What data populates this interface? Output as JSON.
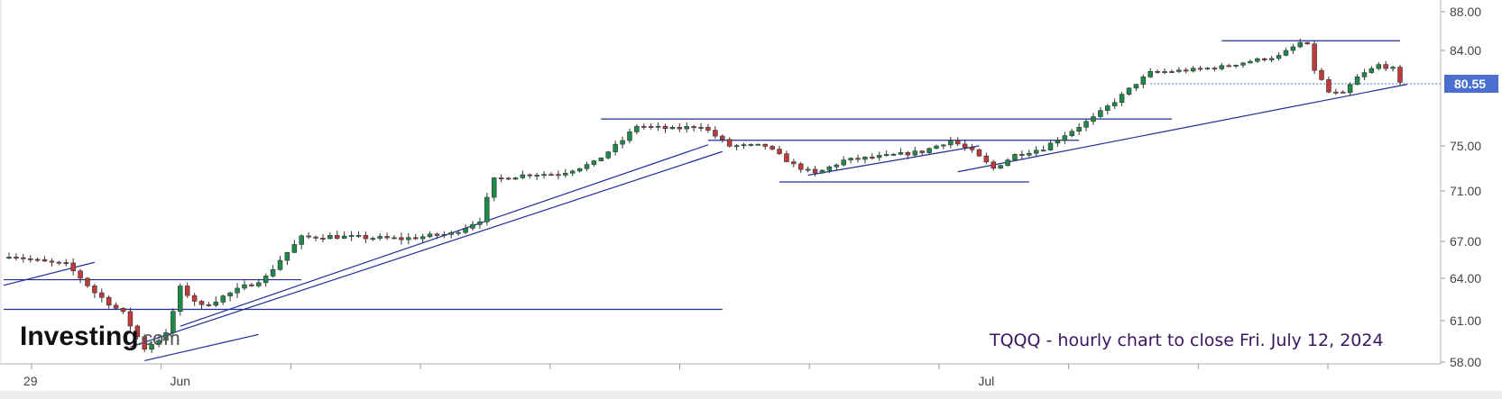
{
  "chart_data": {
    "type": "candlestick",
    "instrument": "TQQQ",
    "annotation": "TQQQ - hourly chart to close Fri. July 12, 2024",
    "logo": {
      "main": "Investing",
      "sub": ".com"
    },
    "last_price": {
      "label": "80.55",
      "value": 80.55
    },
    "y_ticks": [
      {
        "label": "88.00",
        "value": 88
      },
      {
        "label": "84.00",
        "value": 84
      },
      {
        "label": "75.00",
        "value": 75
      },
      {
        "label": "71.00",
        "value": 71
      },
      {
        "label": "67.00",
        "value": 67
      },
      {
        "label": "64.00",
        "value": 64
      },
      {
        "label": "61.00",
        "value": 61
      },
      {
        "label": "58.00",
        "value": 58
      }
    ],
    "x_labels": [
      {
        "label": "29",
        "index": 3
      },
      {
        "label": "Jun",
        "index": 24
      },
      {
        "label": "Jul",
        "index": 137
      }
    ],
    "ylim": [
      57.7,
      88.5
    ],
    "total_bars": 196,
    "colors": {
      "up": "#1e8a4a",
      "down": "#c03a3a",
      "lines": "#1f2d9c",
      "price_badge": "#4a6fd1"
    },
    "anchors": [
      {
        "i": 0,
        "c": 65.9
      },
      {
        "i": 4,
        "c": 65.4
      },
      {
        "i": 8,
        "c": 65.1
      },
      {
        "i": 12,
        "c": 63.0
      },
      {
        "i": 16,
        "c": 61.5
      },
      {
        "i": 19,
        "c": 59.0
      },
      {
        "i": 22,
        "c": 60.0
      },
      {
        "i": 24,
        "c": 63.3
      },
      {
        "i": 27,
        "c": 62.0
      },
      {
        "i": 33,
        "c": 63.4
      },
      {
        "i": 36,
        "c": 64.1
      },
      {
        "i": 38,
        "c": 65.5
      },
      {
        "i": 41,
        "c": 67.3
      },
      {
        "i": 45,
        "c": 67.4
      },
      {
        "i": 55,
        "c": 67.2
      },
      {
        "i": 62,
        "c": 67.6
      },
      {
        "i": 66,
        "c": 68.7
      },
      {
        "i": 68,
        "c": 72.0
      },
      {
        "i": 73,
        "c": 72.5
      },
      {
        "i": 77,
        "c": 72.5
      },
      {
        "i": 82,
        "c": 73.5
      },
      {
        "i": 86,
        "c": 75.5
      },
      {
        "i": 88,
        "c": 76.8
      },
      {
        "i": 93,
        "c": 76.5
      },
      {
        "i": 97,
        "c": 76.8
      },
      {
        "i": 101,
        "c": 75.0
      },
      {
        "i": 106,
        "c": 75.0
      },
      {
        "i": 110,
        "c": 73.3
      },
      {
        "i": 113,
        "c": 72.5
      },
      {
        "i": 117,
        "c": 73.7
      },
      {
        "i": 123,
        "c": 74.1
      },
      {
        "i": 128,
        "c": 74.5
      },
      {
        "i": 132,
        "c": 75.5
      },
      {
        "i": 135,
        "c": 74.5
      },
      {
        "i": 138,
        "c": 73.0
      },
      {
        "i": 141,
        "c": 74.2
      },
      {
        "i": 145,
        "c": 74.8
      },
      {
        "i": 148,
        "c": 76.0
      },
      {
        "i": 152,
        "c": 77.5
      },
      {
        "i": 156,
        "c": 79.5
      },
      {
        "i": 160,
        "c": 81.7
      },
      {
        "i": 166,
        "c": 82.0
      },
      {
        "i": 170,
        "c": 82.3
      },
      {
        "i": 174,
        "c": 82.9
      },
      {
        "i": 178,
        "c": 83.4
      },
      {
        "i": 181,
        "c": 84.8
      },
      {
        "i": 182,
        "c": 84.5
      },
      {
        "i": 183,
        "c": 82.0
      },
      {
        "i": 185,
        "c": 79.8
      },
      {
        "i": 187,
        "c": 79.6
      },
      {
        "i": 189,
        "c": 81.2
      },
      {
        "i": 192,
        "c": 82.5
      },
      {
        "i": 194,
        "c": 82.1
      },
      {
        "i": 195,
        "c": 80.55
      }
    ],
    "horizontal_lines": [
      {
        "value": 63.9,
        "from": 0,
        "to": 41
      },
      {
        "value": 61.8,
        "from": 0,
        "to": 100
      },
      {
        "value": 77.4,
        "from": 83,
        "to": 163
      },
      {
        "value": 75.5,
        "from": 98,
        "to": 150
      },
      {
        "value": 71.8,
        "from": 108,
        "to": 143
      },
      {
        "value": 85.0,
        "from": 170,
        "to": 195
      }
    ],
    "trend_lines": [
      {
        "from": [
          0,
          63.5
        ],
        "to": [
          12,
          65.3
        ]
      },
      {
        "from": [
          24,
          60.6
        ],
        "to": [
          98,
          75.1
        ]
      },
      {
        "from": [
          17,
          59.1
        ],
        "to": [
          100,
          74.5
        ]
      },
      {
        "from": [
          19,
          58.1
        ],
        "to": [
          35,
          60.0
        ]
      },
      {
        "from": [
          112,
          72.4
        ],
        "to": [
          136,
          75.0
        ]
      },
      {
        "from": [
          133,
          72.7
        ],
        "to": [
          196,
          80.5
        ]
      }
    ]
  }
}
